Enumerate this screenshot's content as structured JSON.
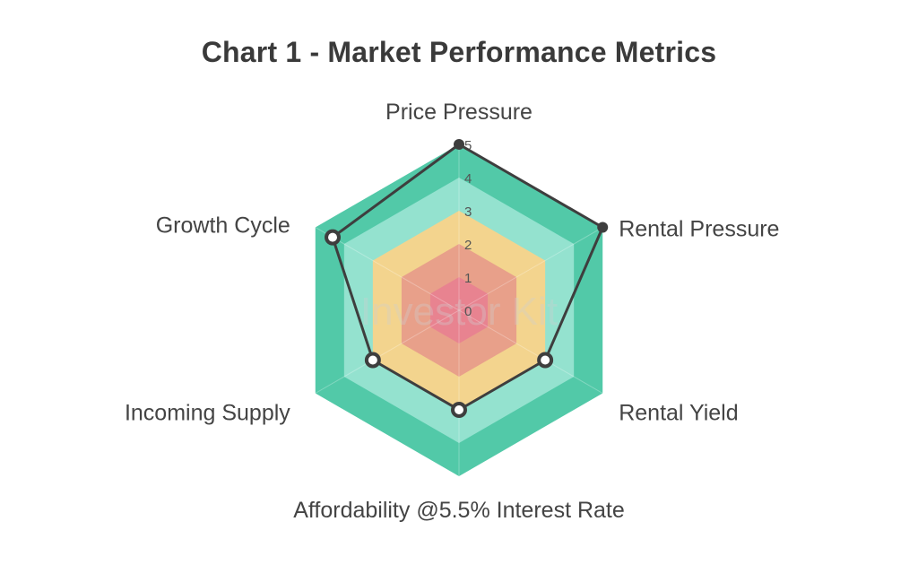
{
  "chart_data": {
    "type": "radar",
    "title": "Chart 1 - Market Performance Metrics",
    "axes": [
      "Price Pressure",
      "Rental Pressure",
      "Rental Yield",
      "Affordability @5.5% Interest Rate",
      "Incoming Supply",
      "Growth Cycle"
    ],
    "ticks": [
      "0",
      "1",
      "2",
      "3",
      "4",
      "5"
    ],
    "range": [
      0,
      5
    ],
    "series": [
      {
        "name": "Market Performance",
        "values": [
          5,
          5,
          3,
          3,
          3,
          4.4
        ]
      }
    ],
    "band_colors": [
      "#e88390",
      "#e8a08a",
      "#f3d48e",
      "#94e2cf",
      "#52c9a8"
    ],
    "line_color": "#3e3e3e",
    "watermark": "Investor Kit"
  }
}
